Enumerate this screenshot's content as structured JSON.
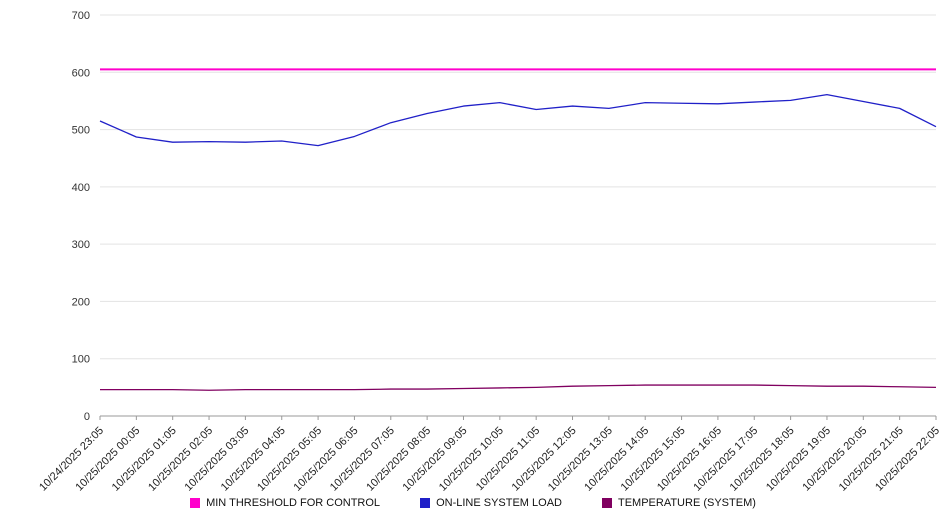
{
  "chart_data": {
    "type": "line",
    "title": "",
    "xlabel": "",
    "ylabel": "",
    "ylim": [
      0,
      700
    ],
    "ytick_step": 100,
    "grid": true,
    "legend_position": "bottom",
    "x_label_rotation": -45,
    "categories": [
      "10/24/2025 23:05",
      "10/25/2025 00:05",
      "10/25/2025 01:05",
      "10/25/2025 02:05",
      "10/25/2025 03:05",
      "10/25/2025 04:05",
      "10/25/2025 05:05",
      "10/25/2025 06:05",
      "10/25/2025 07:05",
      "10/25/2025 08:05",
      "10/25/2025 09:05",
      "10/25/2025 10:05",
      "10/25/2025 11:05",
      "10/25/2025 12:05",
      "10/25/2025 13:05",
      "10/25/2025 14:05",
      "10/25/2025 15:05",
      "10/25/2025 16:05",
      "10/25/2025 17:05",
      "10/25/2025 18:05",
      "10/25/2025 19:05",
      "10/25/2025 20:05",
      "10/25/2025 21:05",
      "10/25/2025 22:05"
    ],
    "series": [
      {
        "name": "MIN THRESHOLD FOR CONTROL",
        "color": "#ff00cc",
        "stroke_width": 2,
        "values": [
          605,
          605,
          605,
          605,
          605,
          605,
          605,
          605,
          605,
          605,
          605,
          605,
          605,
          605,
          605,
          605,
          605,
          605,
          605,
          605,
          605,
          605,
          605,
          605
        ]
      },
      {
        "name": "ON-LINE SYSTEM LOAD",
        "color": "#2020c8",
        "stroke_width": 1.3,
        "values": [
          515,
          487,
          478,
          479,
          478,
          480,
          472,
          488,
          512,
          528,
          541,
          547,
          535,
          541,
          537,
          547,
          546,
          545,
          548,
          551,
          561,
          549,
          537,
          505
        ]
      },
      {
        "name": "TEMPERATURE (SYSTEM)",
        "color": "#800060",
        "stroke_width": 1.3,
        "values": [
          46,
          46,
          46,
          45,
          46,
          46,
          46,
          46,
          47,
          47,
          48,
          49,
          50,
          52,
          53,
          54,
          54,
          54,
          54,
          53,
          52,
          52,
          51,
          50
        ]
      }
    ]
  }
}
